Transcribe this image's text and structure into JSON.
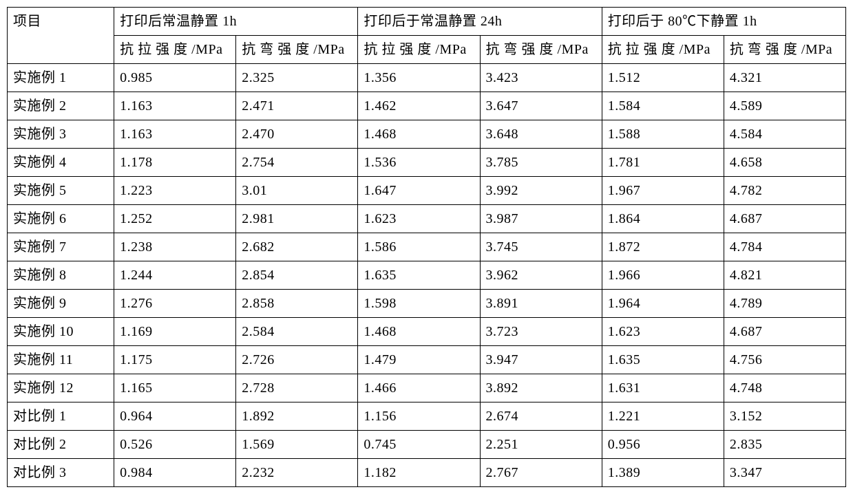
{
  "table": {
    "header": {
      "item_label": "项目",
      "groups": [
        "打印后常温静置 1h",
        "打印后于常温静置 24h",
        "打印后于 80℃下静置 1h"
      ],
      "sub_tensile": "抗 拉 强 度 /MPa",
      "sub_flex": "抗 弯 强 度 /MPa"
    },
    "rows": [
      {
        "name": "实施例 1",
        "v": [
          "0.985",
          "2.325",
          "1.356",
          "3.423",
          "1.512",
          "4.321"
        ]
      },
      {
        "name": "实施例 2",
        "v": [
          "1.163",
          "2.471",
          "1.462",
          "3.647",
          "1.584",
          "4.589"
        ]
      },
      {
        "name": "实施例 3",
        "v": [
          "1.163",
          "2.470",
          "1.468",
          "3.648",
          "1.588",
          "4.584"
        ]
      },
      {
        "name": "实施例 4",
        "v": [
          "1.178",
          "2.754",
          "1.536",
          "3.785",
          "1.781",
          "4.658"
        ]
      },
      {
        "name": "实施例 5",
        "v": [
          "1.223",
          "3.01",
          "1.647",
          "3.992",
          "1.967",
          "4.782"
        ]
      },
      {
        "name": "实施例 6",
        "v": [
          "1.252",
          "2.981",
          "1.623",
          "3.987",
          "1.864",
          "4.687"
        ]
      },
      {
        "name": "实施例 7",
        "v": [
          "1.238",
          "2.682",
          "1.586",
          "3.745",
          "1.872",
          "4.784"
        ]
      },
      {
        "name": "实施例 8",
        "v": [
          "1.244",
          "2.854",
          "1.635",
          "3.962",
          "1.966",
          "4.821"
        ]
      },
      {
        "name": "实施例 9",
        "v": [
          "1.276",
          "2.858",
          "1.598",
          "3.891",
          "1.964",
          "4.789"
        ]
      },
      {
        "name": "实施例 10",
        "v": [
          "1.169",
          "2.584",
          "1.468",
          "3.723",
          "1.623",
          "4.687"
        ]
      },
      {
        "name": "实施例 11",
        "v": [
          "1.175",
          "2.726",
          "1.479",
          "3.947",
          "1.635",
          "4.756"
        ]
      },
      {
        "name": "实施例 12",
        "v": [
          "1.165",
          "2.728",
          "1.466",
          "3.892",
          "1.631",
          "4.748"
        ]
      },
      {
        "name": "对比例 1",
        "v": [
          "0.964",
          "1.892",
          "1.156",
          "2.674",
          "1.221",
          "3.152"
        ]
      },
      {
        "name": "对比例 2",
        "v": [
          "0.526",
          "1.569",
          "0.745",
          "2.251",
          "0.956",
          "2.835"
        ]
      },
      {
        "name": "对比例 3",
        "v": [
          "0.984",
          "2.232",
          "1.182",
          "2.767",
          "1.389",
          "3.347"
        ]
      }
    ],
    "colors": {
      "border": "#000000",
      "background": "#ffffff",
      "text": "#000000"
    },
    "font_size_pt": 15,
    "columns": 7
  }
}
